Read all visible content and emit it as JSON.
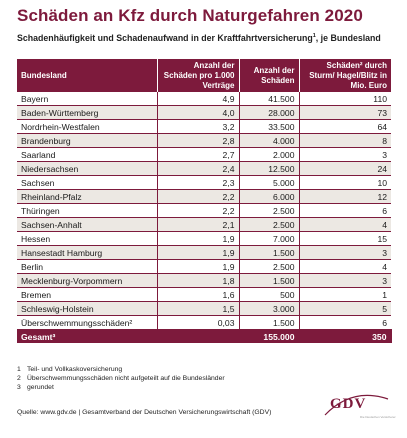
{
  "title": "Schäden an Kfz durch Naturgefahren 2020",
  "subtitle": {
    "text_before": "Schadenhäufigkeit und Schadenaufwand in der Kraftfahrtversicherung",
    "footnote": "1",
    "text_after": ", je Bundesland"
  },
  "table": {
    "headers": [
      "Bundesland",
      "Anzahl der Schäden pro 1.000 Verträge",
      "Anzahl der Schäden",
      "Schäden² durch Sturm/ Hagel/Blitz in Mio. Euro"
    ],
    "rows": [
      {
        "land": "Bayern",
        "per1000": "4,9",
        "count": "41.500",
        "eur": "110"
      },
      {
        "land": "Baden-Württemberg",
        "per1000": "4,0",
        "count": "28.000",
        "eur": "73"
      },
      {
        "land": "Nordrhein-Westfalen",
        "per1000": "3,2",
        "count": "33.500",
        "eur": "64"
      },
      {
        "land": "Brandenburg",
        "per1000": "2,8",
        "count": "4.000",
        "eur": "8"
      },
      {
        "land": "Saarland",
        "per1000": "2,7",
        "count": "2.000",
        "eur": "3"
      },
      {
        "land": "Niedersachsen",
        "per1000": "2,4",
        "count": "12.500",
        "eur": "24"
      },
      {
        "land": "Sachsen",
        "per1000": "2,3",
        "count": "5.000",
        "eur": "10"
      },
      {
        "land": "Rheinland-Pfalz",
        "per1000": "2,2",
        "count": "6.000",
        "eur": "12"
      },
      {
        "land": "Thüringen",
        "per1000": "2,2",
        "count": "2.500",
        "eur": "6"
      },
      {
        "land": "Sachsen-Anhalt",
        "per1000": "2,1",
        "count": "2.500",
        "eur": "4"
      },
      {
        "land": "Hessen",
        "per1000": "1,9",
        "count": "7.000",
        "eur": "15"
      },
      {
        "land": "Hansestadt Hamburg",
        "per1000": "1,9",
        "count": "1.500",
        "eur": "3"
      },
      {
        "land": "Berlin",
        "per1000": "1,9",
        "count": "2.500",
        "eur": "4"
      },
      {
        "land": "Mecklenburg-Vorpommern",
        "per1000": "1,8",
        "count": "1.500",
        "eur": "3"
      },
      {
        "land": "Bremen",
        "per1000": "1,6",
        "count": "500",
        "eur": "1"
      },
      {
        "land": "Schleswig-Holstein",
        "per1000": "1,5",
        "count": "3.000",
        "eur": "5"
      },
      {
        "land": "Überschwemmungsschäden²",
        "per1000": "0,03",
        "count": "1.500",
        "eur": "6"
      }
    ],
    "total": {
      "label": "Gesamt³",
      "per1000": "",
      "count": "155.000",
      "eur": "350"
    }
  },
  "footnotes": [
    {
      "n": "1",
      "text": "Teil- und Vollkaskoversicherung"
    },
    {
      "n": "2",
      "text": "Überschwemmungsschäden nicht aufgeteilt auf die Bundesländer"
    },
    {
      "n": "3",
      "text": "gerundet"
    }
  ],
  "source": "Quelle: www.gdv.de | Gesamtverband der Deutschen Versicherungswirtschaft (GDV)",
  "logo": {
    "text": "GDV",
    "tagline": "Die Deutschen Versicherer"
  },
  "colors": {
    "accent": "#7d1a3c",
    "row_shade": "#ece8e3"
  }
}
